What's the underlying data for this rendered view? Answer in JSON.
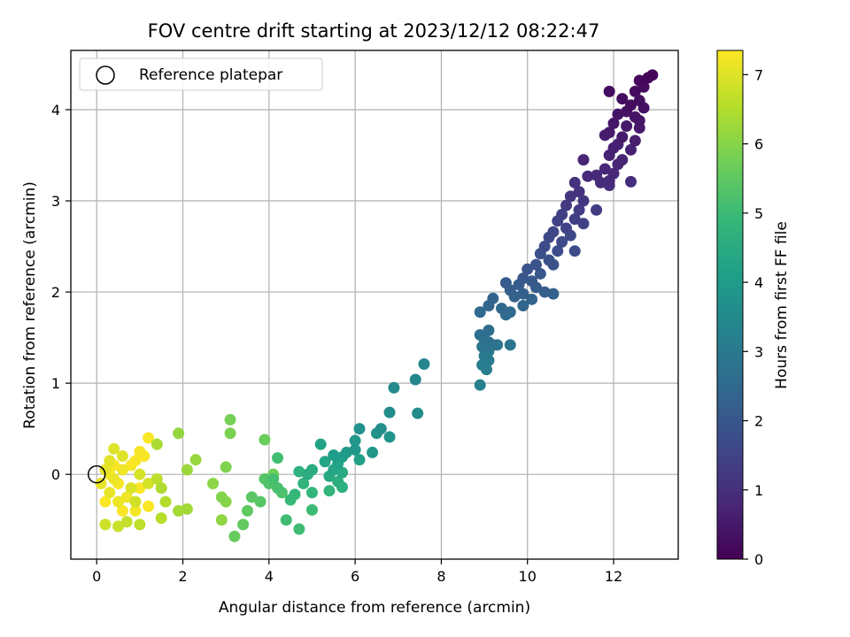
{
  "chart_data": {
    "type": "scatter",
    "title": "FOV centre drift starting at 2023/12/12 08:22:47",
    "xlabel": "Angular distance from reference (arcmin)",
    "ylabel": "Rotation from reference (arcmin)",
    "xlim": [
      -0.6,
      13.5
    ],
    "ylim": [
      -0.93,
      4.65
    ],
    "xticks": [
      "0",
      "2",
      "4",
      "6",
      "8",
      "10",
      "12"
    ],
    "yticks": [
      "0",
      "1",
      "2",
      "3",
      "4"
    ],
    "grid": true,
    "legend": {
      "placement": "top-left",
      "entries": [
        "Reference platepar"
      ]
    },
    "colorbar": {
      "label": "Hours from first FF file",
      "range": [
        0,
        7.35
      ],
      "ticks": [
        "0",
        "1",
        "2",
        "3",
        "4",
        "5",
        "6",
        "7"
      ],
      "colormap": "viridis"
    },
    "reference_point": {
      "x": 0,
      "y": 0
    },
    "points": [
      {
        "x": 12.9,
        "y": 4.38,
        "c": 0.1
      },
      {
        "x": 12.8,
        "y": 4.35,
        "c": 0.1
      },
      {
        "x": 12.6,
        "y": 4.32,
        "c": 0.15
      },
      {
        "x": 12.7,
        "y": 4.25,
        "c": 0.2
      },
      {
        "x": 12.5,
        "y": 4.2,
        "c": 0.2
      },
      {
        "x": 12.2,
        "y": 4.12,
        "c": 0.25
      },
      {
        "x": 11.9,
        "y": 4.2,
        "c": 0.25
      },
      {
        "x": 12.6,
        "y": 4.1,
        "c": 0.3
      },
      {
        "x": 12.4,
        "y": 4.05,
        "c": 0.3
      },
      {
        "x": 12.7,
        "y": 4.02,
        "c": 0.35
      },
      {
        "x": 12.3,
        "y": 3.98,
        "c": 0.35
      },
      {
        "x": 12.1,
        "y": 3.95,
        "c": 0.4
      },
      {
        "x": 12.5,
        "y": 3.92,
        "c": 0.4
      },
      {
        "x": 12.6,
        "y": 3.88,
        "c": 0.45
      },
      {
        "x": 12.0,
        "y": 3.85,
        "c": 0.45
      },
      {
        "x": 12.3,
        "y": 3.82,
        "c": 0.5
      },
      {
        "x": 12.6,
        "y": 3.8,
        "c": 0.5
      },
      {
        "x": 11.9,
        "y": 3.75,
        "c": 0.55
      },
      {
        "x": 12.2,
        "y": 3.7,
        "c": 0.55
      },
      {
        "x": 11.8,
        "y": 3.72,
        "c": 0.6
      },
      {
        "x": 12.5,
        "y": 3.66,
        "c": 0.6
      },
      {
        "x": 12.1,
        "y": 3.62,
        "c": 0.65
      },
      {
        "x": 12.0,
        "y": 3.58,
        "c": 0.65
      },
      {
        "x": 12.4,
        "y": 3.56,
        "c": 0.7
      },
      {
        "x": 11.9,
        "y": 3.5,
        "c": 0.7
      },
      {
        "x": 12.2,
        "y": 3.45,
        "c": 0.75
      },
      {
        "x": 11.3,
        "y": 3.45,
        "c": 0.75
      },
      {
        "x": 12.1,
        "y": 3.4,
        "c": 0.8
      },
      {
        "x": 11.8,
        "y": 3.35,
        "c": 0.8
      },
      {
        "x": 12.0,
        "y": 3.3,
        "c": 0.85
      },
      {
        "x": 11.6,
        "y": 3.28,
        "c": 0.85
      },
      {
        "x": 11.4,
        "y": 3.27,
        "c": 0.9
      },
      {
        "x": 11.9,
        "y": 3.22,
        "c": 0.9
      },
      {
        "x": 12.4,
        "y": 3.21,
        "c": 0.95
      },
      {
        "x": 11.7,
        "y": 3.2,
        "c": 0.95
      },
      {
        "x": 11.9,
        "y": 3.17,
        "c": 1.0
      },
      {
        "x": 11.1,
        "y": 3.2,
        "c": 1.05
      },
      {
        "x": 11.2,
        "y": 3.1,
        "c": 1.1
      },
      {
        "x": 11.0,
        "y": 3.05,
        "c": 1.15
      },
      {
        "x": 11.3,
        "y": 3.0,
        "c": 1.2
      },
      {
        "x": 10.9,
        "y": 2.95,
        "c": 1.25
      },
      {
        "x": 11.2,
        "y": 2.9,
        "c": 1.3
      },
      {
        "x": 11.6,
        "y": 2.9,
        "c": 1.3
      },
      {
        "x": 10.8,
        "y": 2.85,
        "c": 1.35
      },
      {
        "x": 11.1,
        "y": 2.8,
        "c": 1.4
      },
      {
        "x": 10.7,
        "y": 2.78,
        "c": 1.45
      },
      {
        "x": 11.3,
        "y": 2.75,
        "c": 1.45
      },
      {
        "x": 10.9,
        "y": 2.7,
        "c": 1.5
      },
      {
        "x": 10.6,
        "y": 2.66,
        "c": 1.55
      },
      {
        "x": 11.0,
        "y": 2.62,
        "c": 1.6
      },
      {
        "x": 10.5,
        "y": 2.6,
        "c": 1.6
      },
      {
        "x": 10.8,
        "y": 2.55,
        "c": 1.65
      },
      {
        "x": 10.4,
        "y": 2.5,
        "c": 1.7
      },
      {
        "x": 11.1,
        "y": 2.45,
        "c": 1.7
      },
      {
        "x": 10.7,
        "y": 2.45,
        "c": 1.75
      },
      {
        "x": 10.3,
        "y": 2.42,
        "c": 1.8
      },
      {
        "x": 10.5,
        "y": 2.35,
        "c": 1.85
      },
      {
        "x": 10.6,
        "y": 2.3,
        "c": 1.85
      },
      {
        "x": 10.2,
        "y": 2.3,
        "c": 1.9
      },
      {
        "x": 10.0,
        "y": 2.25,
        "c": 1.95
      },
      {
        "x": 10.3,
        "y": 2.2,
        "c": 2.0
      },
      {
        "x": 9.9,
        "y": 2.15,
        "c": 2.0
      },
      {
        "x": 10.1,
        "y": 2.12,
        "c": 2.05
      },
      {
        "x": 9.5,
        "y": 2.1,
        "c": 2.1
      },
      {
        "x": 9.8,
        "y": 2.08,
        "c": 2.1
      },
      {
        "x": 10.2,
        "y": 2.05,
        "c": 2.15
      },
      {
        "x": 9.6,
        "y": 2.02,
        "c": 2.2
      },
      {
        "x": 10.4,
        "y": 2.0,
        "c": 2.2
      },
      {
        "x": 9.9,
        "y": 1.98,
        "c": 2.25
      },
      {
        "x": 10.6,
        "y": 1.98,
        "c": 2.25
      },
      {
        "x": 9.7,
        "y": 1.95,
        "c": 2.3
      },
      {
        "x": 9.2,
        "y": 1.93,
        "c": 2.35
      },
      {
        "x": 10.1,
        "y": 1.92,
        "c": 2.35
      },
      {
        "x": 9.1,
        "y": 1.85,
        "c": 2.4
      },
      {
        "x": 9.9,
        "y": 1.85,
        "c": 2.4
      },
      {
        "x": 9.4,
        "y": 1.82,
        "c": 2.45
      },
      {
        "x": 8.9,
        "y": 1.78,
        "c": 2.5
      },
      {
        "x": 9.6,
        "y": 1.78,
        "c": 2.5
      },
      {
        "x": 9.5,
        "y": 1.75,
        "c": 2.55
      },
      {
        "x": 9.1,
        "y": 1.58,
        "c": 2.6
      },
      {
        "x": 8.9,
        "y": 1.53,
        "c": 2.65
      },
      {
        "x": 9.0,
        "y": 1.48,
        "c": 2.7
      },
      {
        "x": 9.1,
        "y": 1.45,
        "c": 2.75
      },
      {
        "x": 9.2,
        "y": 1.42,
        "c": 2.8
      },
      {
        "x": 9.3,
        "y": 1.42,
        "c": 2.85
      },
      {
        "x": 9.6,
        "y": 1.42,
        "c": 2.85
      },
      {
        "x": 8.95,
        "y": 1.4,
        "c": 2.9
      },
      {
        "x": 9.1,
        "y": 1.35,
        "c": 2.95
      },
      {
        "x": 9.0,
        "y": 1.3,
        "c": 3.0
      },
      {
        "x": 9.1,
        "y": 1.25,
        "c": 3.05
      },
      {
        "x": 8.95,
        "y": 1.2,
        "c": 3.1
      },
      {
        "x": 9.05,
        "y": 1.15,
        "c": 3.15
      },
      {
        "x": 8.9,
        "y": 0.98,
        "c": 3.2
      },
      {
        "x": 9.0,
        "y": 1.4,
        "c": 3.25
      },
      {
        "x": 7.6,
        "y": 1.21,
        "c": 3.4
      },
      {
        "x": 7.4,
        "y": 1.04,
        "c": 3.45
      },
      {
        "x": 6.9,
        "y": 0.95,
        "c": 3.5
      },
      {
        "x": 7.45,
        "y": 0.67,
        "c": 3.55
      },
      {
        "x": 6.8,
        "y": 0.68,
        "c": 3.6
      },
      {
        "x": 6.6,
        "y": 0.5,
        "c": 3.65
      },
      {
        "x": 6.1,
        "y": 0.5,
        "c": 3.7
      },
      {
        "x": 6.5,
        "y": 0.45,
        "c": 3.75
      },
      {
        "x": 6.8,
        "y": 0.41,
        "c": 3.8
      },
      {
        "x": 6.0,
        "y": 0.37,
        "c": 3.85
      },
      {
        "x": 6.0,
        "y": 0.27,
        "c": 3.9
      },
      {
        "x": 6.4,
        "y": 0.24,
        "c": 3.95
      },
      {
        "x": 5.8,
        "y": 0.24,
        "c": 4.0
      },
      {
        "x": 5.5,
        "y": 0.21,
        "c": 4.05
      },
      {
        "x": 5.7,
        "y": 0.19,
        "c": 4.1
      },
      {
        "x": 6.1,
        "y": 0.16,
        "c": 4.15
      },
      {
        "x": 5.6,
        "y": 0.12,
        "c": 4.2
      },
      {
        "x": 5.2,
        "y": 0.33,
        "c": 4.25
      },
      {
        "x": 5.3,
        "y": 0.14,
        "c": 4.3
      },
      {
        "x": 5.5,
        "y": 0.05,
        "c": 4.35
      },
      {
        "x": 5.7,
        "y": 0.02,
        "c": 4.4
      },
      {
        "x": 5.4,
        "y": -0.02,
        "c": 4.45
      },
      {
        "x": 5.0,
        "y": 0.05,
        "c": 4.5
      },
      {
        "x": 4.9,
        "y": 0.0,
        "c": 4.55
      },
      {
        "x": 5.6,
        "y": -0.08,
        "c": 4.6
      },
      {
        "x": 5.7,
        "y": -0.14,
        "c": 4.65
      },
      {
        "x": 4.7,
        "y": 0.03,
        "c": 4.7
      },
      {
        "x": 4.8,
        "y": -0.1,
        "c": 4.75
      },
      {
        "x": 5.4,
        "y": -0.18,
        "c": 4.8
      },
      {
        "x": 5.0,
        "y": -0.2,
        "c": 4.85
      },
      {
        "x": 4.6,
        "y": -0.22,
        "c": 4.9
      },
      {
        "x": 4.5,
        "y": -0.28,
        "c": 4.95
      },
      {
        "x": 5.0,
        "y": -0.39,
        "c": 5.0
      },
      {
        "x": 4.4,
        "y": -0.5,
        "c": 5.05
      },
      {
        "x": 4.7,
        "y": -0.6,
        "c": 5.05
      },
      {
        "x": 4.2,
        "y": 0.18,
        "c": 5.1
      },
      {
        "x": 4.1,
        "y": -0.05,
        "c": 5.15
      },
      {
        "x": 4.2,
        "y": -0.15,
        "c": 5.2
      },
      {
        "x": 4.3,
        "y": -0.2,
        "c": 5.25
      },
      {
        "x": 4.0,
        "y": -0.1,
        "c": 5.3
      },
      {
        "x": 3.9,
        "y": -0.05,
        "c": 5.35
      },
      {
        "x": 3.8,
        "y": -0.3,
        "c": 5.4
      },
      {
        "x": 3.6,
        "y": -0.25,
        "c": 5.45
      },
      {
        "x": 3.5,
        "y": -0.4,
        "c": 5.5
      },
      {
        "x": 3.4,
        "y": -0.55,
        "c": 5.55
      },
      {
        "x": 3.2,
        "y": -0.68,
        "c": 5.6
      },
      {
        "x": 3.9,
        "y": 0.38,
        "c": 5.65
      },
      {
        "x": 4.1,
        "y": 0.0,
        "c": 5.7
      },
      {
        "x": 3.1,
        "y": 0.6,
        "c": 5.8
      },
      {
        "x": 3.1,
        "y": 0.45,
        "c": 5.85
      },
      {
        "x": 3.0,
        "y": 0.08,
        "c": 5.9
      },
      {
        "x": 2.9,
        "y": -0.25,
        "c": 5.95
      },
      {
        "x": 3.0,
        "y": -0.3,
        "c": 6.0
      },
      {
        "x": 2.7,
        "y": -0.1,
        "c": 6.05
      },
      {
        "x": 2.9,
        "y": -0.5,
        "c": 6.1
      },
      {
        "x": 1.9,
        "y": 0.45,
        "c": 6.15
      },
      {
        "x": 2.3,
        "y": 0.16,
        "c": 6.2
      },
      {
        "x": 2.1,
        "y": 0.05,
        "c": 6.25
      },
      {
        "x": 2.1,
        "y": -0.38,
        "c": 6.3
      },
      {
        "x": 1.9,
        "y": -0.4,
        "c": 6.35
      },
      {
        "x": 1.4,
        "y": 0.33,
        "c": 6.4
      },
      {
        "x": 1.5,
        "y": -0.15,
        "c": 6.45
      },
      {
        "x": 1.6,
        "y": -0.3,
        "c": 6.5
      },
      {
        "x": 1.5,
        "y": -0.48,
        "c": 6.55
      },
      {
        "x": 1.4,
        "y": -0.05,
        "c": 6.6
      },
      {
        "x": 1.0,
        "y": -0.55,
        "c": 6.65
      },
      {
        "x": 0.7,
        "y": -0.52,
        "c": 6.7
      },
      {
        "x": 0.5,
        "y": -0.57,
        "c": 6.75
      },
      {
        "x": 0.2,
        "y": -0.55,
        "c": 6.8
      },
      {
        "x": 0.9,
        "y": -0.3,
        "c": 6.85
      },
      {
        "x": 1.2,
        "y": -0.1,
        "c": 6.9
      },
      {
        "x": 1.0,
        "y": 0.0,
        "c": 6.9
      },
      {
        "x": 0.8,
        "y": -0.15,
        "c": 6.95
      },
      {
        "x": 0.6,
        "y": 0.2,
        "c": 7.0
      },
      {
        "x": 0.4,
        "y": 0.28,
        "c": 7.0
      },
      {
        "x": 0.3,
        "y": 0.15,
        "c": 7.05
      },
      {
        "x": 0.2,
        "y": 0.05,
        "c": 7.05
      },
      {
        "x": 0.1,
        "y": -0.1,
        "c": 7.1
      },
      {
        "x": 0.3,
        "y": -0.2,
        "c": 7.1
      },
      {
        "x": 0.5,
        "y": -0.3,
        "c": 7.15
      },
      {
        "x": 0.4,
        "y": -0.05,
        "c": 7.15
      },
      {
        "x": 0.6,
        "y": 0.05,
        "c": 7.2
      },
      {
        "x": 0.7,
        "y": -0.25,
        "c": 7.2
      },
      {
        "x": 0.9,
        "y": -0.4,
        "c": 7.25
      },
      {
        "x": 1.0,
        "y": 0.25,
        "c": 7.25
      },
      {
        "x": 1.2,
        "y": 0.4,
        "c": 7.3
      },
      {
        "x": 1.1,
        "y": 0.2,
        "c": 7.3
      },
      {
        "x": 0.8,
        "y": 0.1,
        "c": 7.3
      },
      {
        "x": 1.2,
        "y": -0.35,
        "c": 7.3
      },
      {
        "x": 0.3,
        "y": 0.0,
        "c": 7.3
      },
      {
        "x": 0.5,
        "y": -0.1,
        "c": 7.3
      },
      {
        "x": 0.9,
        "y": 0.15,
        "c": 7.3
      },
      {
        "x": 0.2,
        "y": -0.3,
        "c": 7.3
      },
      {
        "x": 0.6,
        "y": -0.4,
        "c": 7.3
      },
      {
        "x": 1.0,
        "y": -0.15,
        "c": 7.3
      },
      {
        "x": 0.4,
        "y": 0.1,
        "c": 7.3
      }
    ]
  }
}
